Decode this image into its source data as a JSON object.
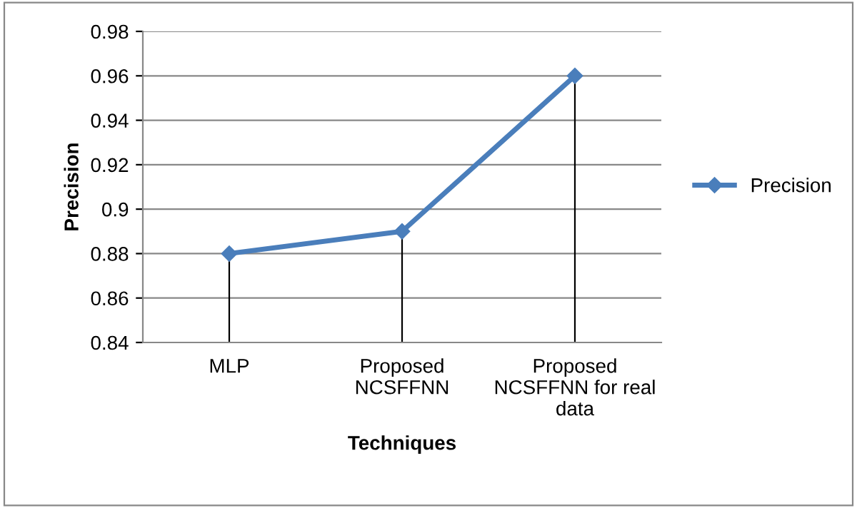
{
  "chart_data": {
    "type": "line",
    "xlabel": "Techniques",
    "ylabel": "Precision",
    "categories": [
      "MLP",
      "Proposed\nNCSFFNN",
      "Proposed\nNCSFFNN for real\ndata"
    ],
    "series": [
      {
        "name": "Precision",
        "color": "#4a7ebb",
        "values": [
          0.88,
          0.89,
          0.96
        ],
        "errors": [
          [
            0.84,
            0.88
          ],
          [
            0.84,
            0.89
          ],
          [
            0.84,
            0.96
          ]
        ]
      }
    ],
    "ylim": [
      0.84,
      0.98
    ],
    "yticks": [
      0.84,
      0.86,
      0.88,
      0.9,
      0.92,
      0.94,
      0.96,
      0.98
    ],
    "grid": "y",
    "legend": "right",
    "marker": "diamond",
    "line_style": "solid"
  }
}
